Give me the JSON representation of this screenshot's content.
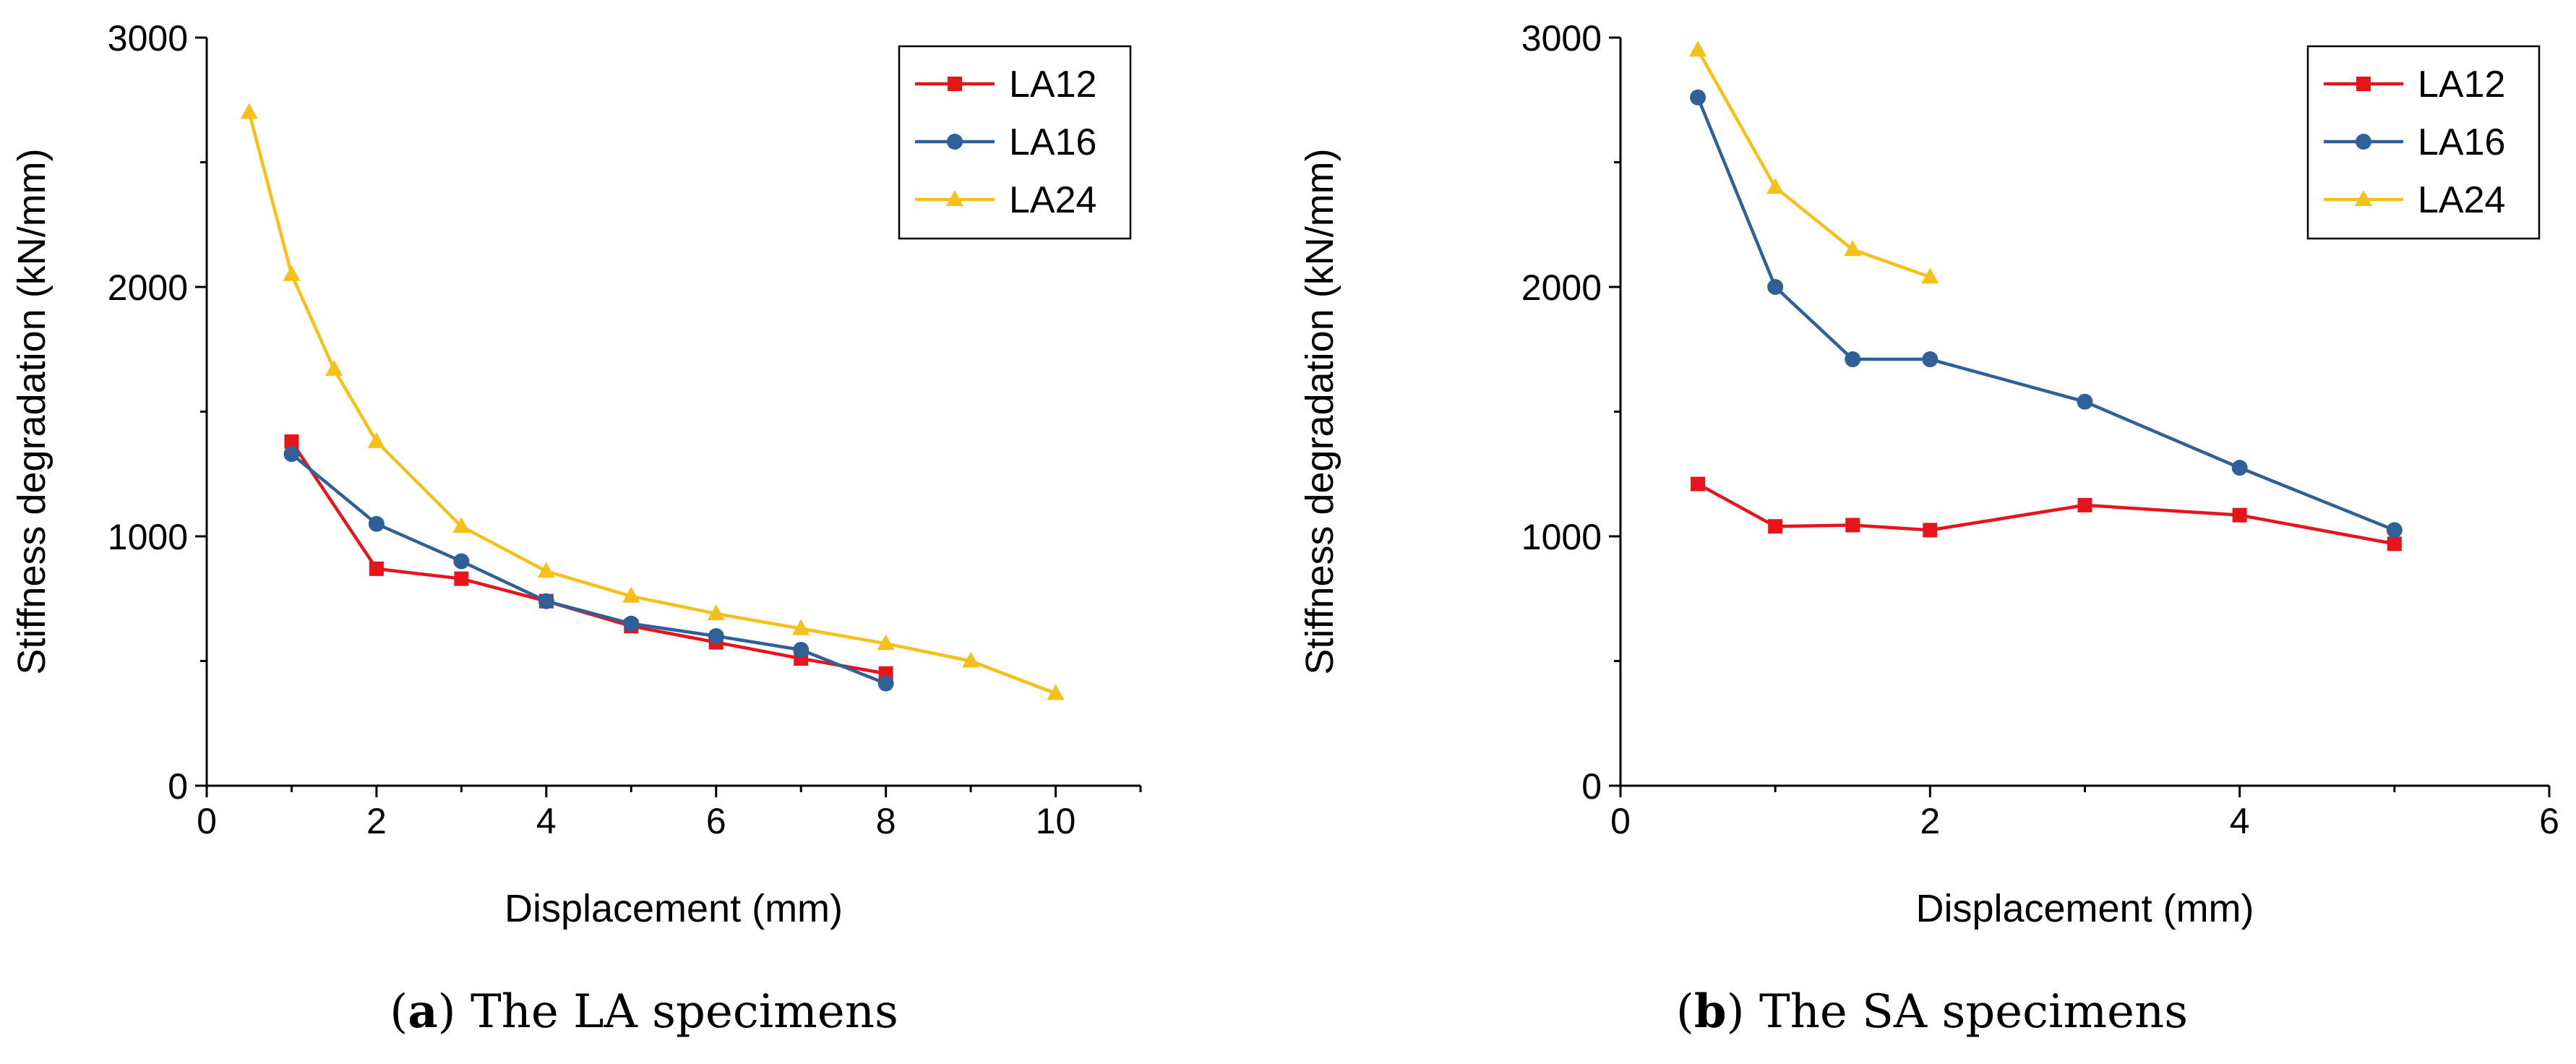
{
  "colors": {
    "LA12": "#e8141b",
    "LA16": "#2f6098",
    "LA24": "#f5c118"
  },
  "chart_data": [
    {
      "type": "line",
      "panel": "a",
      "caption_letter": "a",
      "caption_text": "The LA specimens",
      "xlabel": "Displacement (mm)",
      "ylabel": "Stiffness degradation (kN/mm)",
      "xlim": [
        0,
        11
      ],
      "ylim": [
        0,
        3000
      ],
      "xticks": [
        0,
        2,
        4,
        6,
        8,
        10
      ],
      "yticks": [
        0,
        1000,
        2000,
        3000
      ],
      "legend_position": "top-right",
      "series": [
        {
          "name": "LA12",
          "marker": "square",
          "color": "#e8141b",
          "x": [
            1,
            2,
            3,
            4,
            5,
            6,
            7,
            8
          ],
          "y": [
            1380,
            870,
            830,
            740,
            640,
            575,
            510,
            450
          ]
        },
        {
          "name": "LA16",
          "marker": "circle",
          "color": "#2f6098",
          "x": [
            1,
            2,
            3,
            4,
            5,
            6,
            7,
            8
          ],
          "y": [
            1330,
            1050,
            900,
            740,
            650,
            600,
            545,
            410
          ]
        },
        {
          "name": "LA24",
          "marker": "triangle",
          "color": "#f5c118",
          "x": [
            0.5,
            1,
            1.5,
            2,
            3,
            4,
            5,
            6,
            7,
            8,
            9,
            10
          ],
          "y": [
            2700,
            2050,
            1670,
            1380,
            1040,
            860,
            760,
            690,
            630,
            570,
            500,
            370
          ]
        }
      ]
    },
    {
      "type": "line",
      "panel": "b",
      "caption_letter": "b",
      "caption_text": "The SA specimens",
      "xlabel": "Displacement (mm)",
      "ylabel": "Stiffness degradation (kN/mm)",
      "xlim": [
        0,
        6
      ],
      "ylim": [
        0,
        3000
      ],
      "xticks": [
        0,
        2,
        4,
        6
      ],
      "yticks": [
        0,
        1000,
        2000,
        3000
      ],
      "legend_position": "top-right",
      "series": [
        {
          "name": "LA12",
          "marker": "square",
          "color": "#e8141b",
          "x": [
            0.5,
            1,
            1.5,
            2,
            3,
            4,
            5
          ],
          "y": [
            1210,
            1040,
            1045,
            1025,
            1125,
            1085,
            970
          ]
        },
        {
          "name": "LA16",
          "marker": "circle",
          "color": "#2f6098",
          "x": [
            0.5,
            1,
            1.5,
            2,
            3,
            4,
            5
          ],
          "y": [
            2760,
            2000,
            1710,
            1710,
            1540,
            1275,
            1025
          ]
        },
        {
          "name": "LA24",
          "marker": "triangle",
          "color": "#f5c118",
          "x": [
            0.5,
            1,
            1.5,
            2
          ],
          "y": [
            2950,
            2400,
            2150,
            2040
          ]
        }
      ]
    }
  ]
}
